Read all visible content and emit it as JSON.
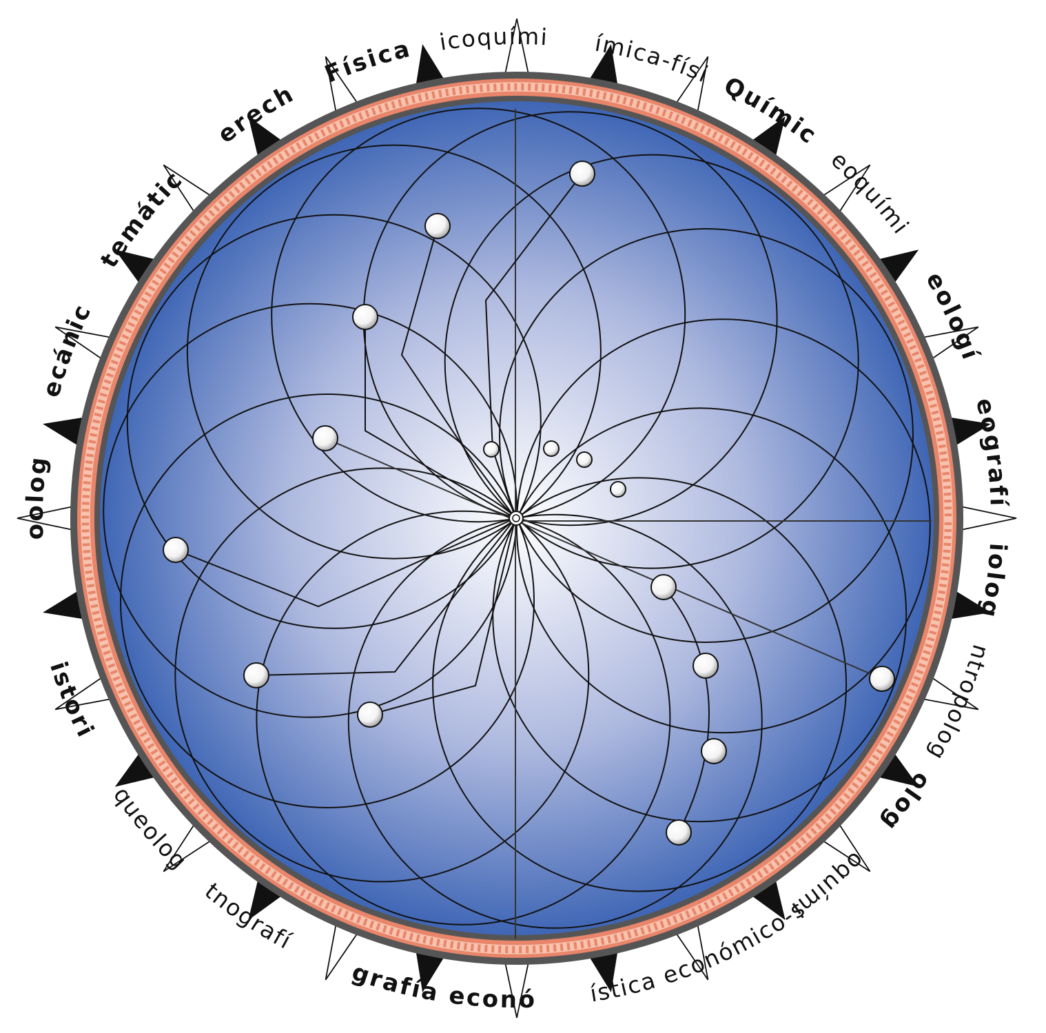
{
  "labels": [
    {
      "text": "Física",
      "weight": "major"
    },
    {
      "text": "Fisicoquímica",
      "weight": "minor"
    },
    {
      "text": "Química-física",
      "weight": "minor"
    },
    {
      "text": "Química",
      "weight": "major"
    },
    {
      "text": "Geoquímica",
      "weight": "minor"
    },
    {
      "text": "Geología",
      "weight": "major"
    },
    {
      "text": "Geografía",
      "weight": "major"
    },
    {
      "text": "Biología",
      "weight": "major"
    },
    {
      "text": "Antropología",
      "weight": "minor"
    },
    {
      "text": "Biología",
      "weight": "major"
    },
    {
      "text": "Bioquímica",
      "weight": "minor"
    },
    {
      "text": "Estadística económico-social",
      "weight": "minor"
    },
    {
      "text": "Geografía económica",
      "weight": "major"
    },
    {
      "text": "Etnografía",
      "weight": "minor"
    },
    {
      "text": "Arqueología",
      "weight": "minor"
    },
    {
      "text": "Historia",
      "weight": "major"
    },
    {
      "text": "Zoología",
      "weight": "major"
    },
    {
      "text": "Mecánica",
      "weight": "major"
    },
    {
      "text": "Matemáticas",
      "weight": "major"
    },
    {
      "text": "Derecho",
      "weight": "major"
    }
  ],
  "colors": {
    "disc_center": "#ffffff",
    "disc_edge": "#3f66b5",
    "border_dark": "#555555",
    "border_salmon": "#e8856a",
    "meander_light": "#f7c3ae",
    "node_fill": "#ffffff",
    "line": "#111111"
  }
}
